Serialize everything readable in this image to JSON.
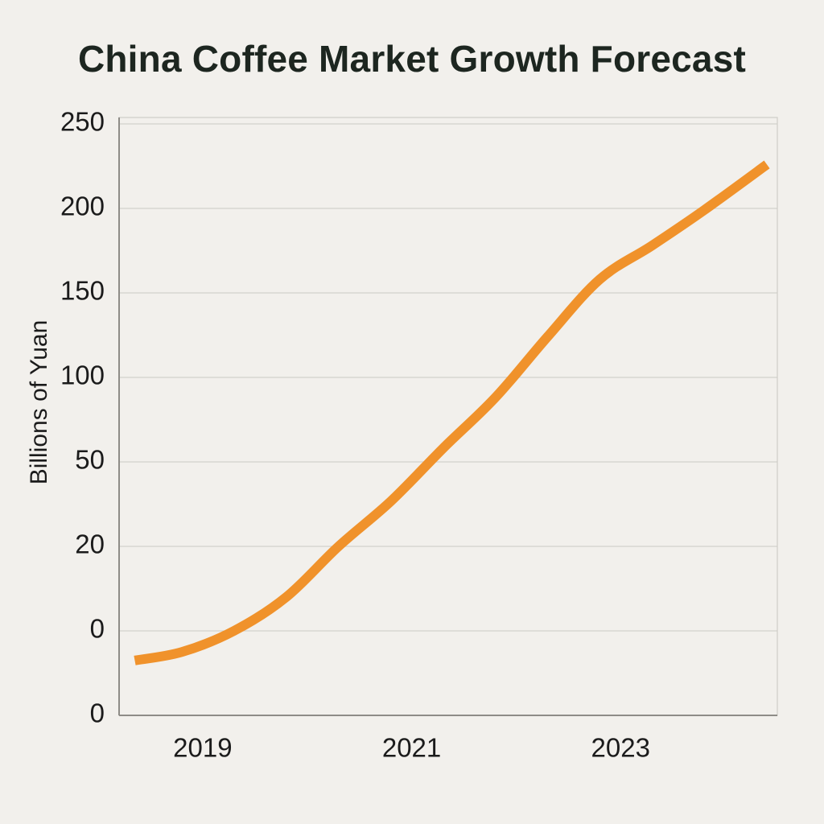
{
  "chart_data": {
    "type": "line",
    "title": "China Coffee Market Growth Forecast",
    "xlabel": "",
    "ylabel": "Billions of Yuan",
    "xlim": [
      2018.2,
      2024.5
    ],
    "x_ticks": [
      2019,
      2021,
      2023
    ],
    "y_tick_labels": [
      "0",
      "0",
      "20",
      "50",
      "100",
      "150",
      "200",
      "250"
    ],
    "grid": true,
    "legend": "none",
    "series": [
      {
        "color": "#f0922b",
        "x": [
          2018.35,
          2018.8,
          2019.3,
          2019.8,
          2020.3,
          2020.8,
          2021.3,
          2021.8,
          2022.3,
          2022.8,
          2023.3,
          2023.8,
          2024.4
        ],
        "y": [
          -7,
          -5,
          0,
          8,
          20,
          36,
          58,
          88,
          124,
          158,
          178,
          199,
          226
        ]
      }
    ]
  }
}
